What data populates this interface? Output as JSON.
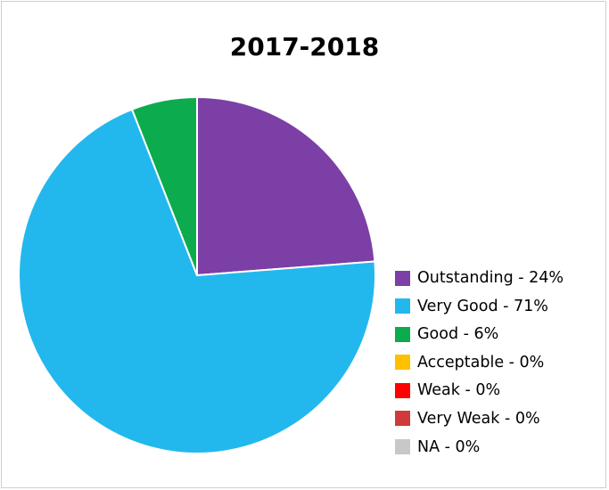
{
  "chart_data": {
    "type": "pie",
    "title": "2017-2018",
    "slices": [
      {
        "label": "Outstanding - 24%",
        "value": 24,
        "color": "#7b3fa6"
      },
      {
        "label": "Very Good - 71%",
        "value": 71,
        "color": "#22b8ee"
      },
      {
        "label": "Good - 6%",
        "value": 6,
        "color": "#0cab4e"
      },
      {
        "label": "Acceptable - 0%",
        "value": 0,
        "color": "#ffc000"
      },
      {
        "label": "Weak - 0%",
        "value": 0,
        "color": "#ff0000"
      },
      {
        "label": "Very Weak - 0%",
        "value": 0,
        "color": "#d03a3a"
      },
      {
        "label": "NA - 0%",
        "value": 0,
        "color": "#c8c8c8"
      }
    ],
    "legend_position": "right"
  }
}
